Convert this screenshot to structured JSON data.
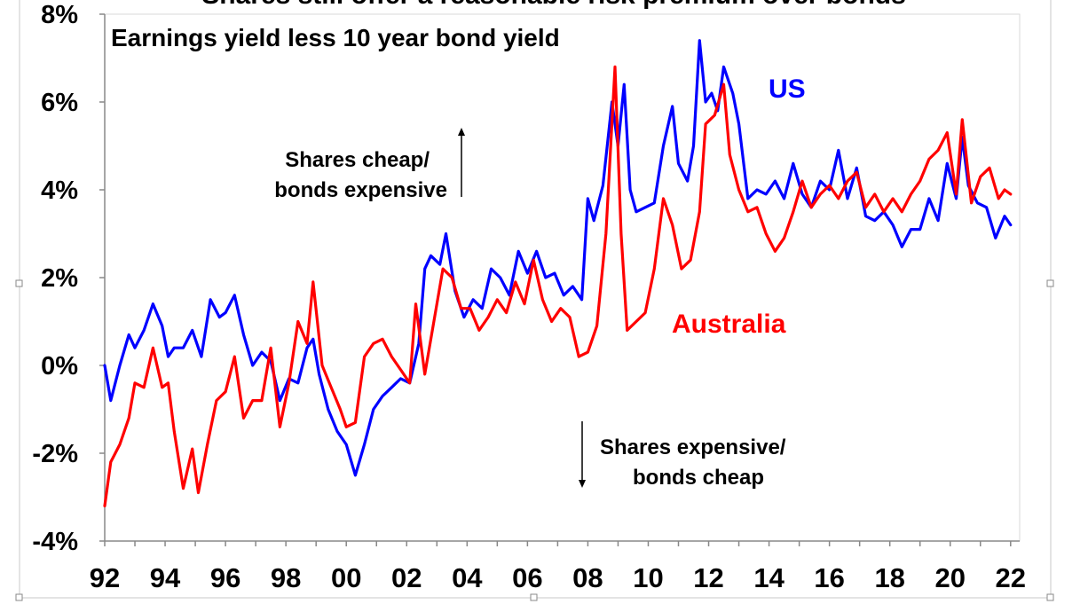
{
  "chart_data": {
    "type": "line",
    "title": "Shares still offer a reasonable risk premium over bonds",
    "subtitle": "Earnings yield less 10 year bond yield",
    "ylim": [
      -4,
      8
    ],
    "xlim": [
      1992,
      2022.3
    ],
    "y_ticks": [
      "8%",
      "6%",
      "4%",
      "2%",
      "0%",
      "-2%",
      "-4%"
    ],
    "y_tick_values": [
      8,
      6,
      4,
      2,
      0,
      -2,
      -4
    ],
    "x_ticks": [
      "92",
      "94",
      "96",
      "98",
      "00",
      "02",
      "04",
      "06",
      "08",
      "10",
      "12",
      "14",
      "16",
      "18",
      "20",
      "22"
    ],
    "x_tick_values": [
      1992,
      1994,
      1996,
      1998,
      2000,
      2002,
      2004,
      2006,
      2008,
      2010,
      2012,
      2014,
      2016,
      2018,
      2020,
      2022
    ],
    "grid": false,
    "series": [
      {
        "name": "US",
        "color": "#0000ff",
        "x": [
          1992.0,
          1992.2,
          1992.5,
          1992.8,
          1993.0,
          1993.3,
          1993.6,
          1993.9,
          1994.1,
          1994.3,
          1994.6,
          1994.9,
          1995.2,
          1995.5,
          1995.8,
          1996.0,
          1996.3,
          1996.6,
          1996.9,
          1997.2,
          1997.5,
          1997.8,
          1998.1,
          1998.4,
          1998.7,
          1998.9,
          1999.1,
          1999.4,
          1999.7,
          2000.0,
          2000.3,
          2000.6,
          2000.9,
          2001.2,
          2001.5,
          2001.8,
          2002.1,
          2002.4,
          2002.6,
          2002.8,
          2003.1,
          2003.3,
          2003.6,
          2003.9,
          2004.2,
          2004.5,
          2004.8,
          2005.1,
          2005.4,
          2005.7,
          2006.0,
          2006.3,
          2006.6,
          2006.9,
          2007.2,
          2007.5,
          2007.8,
          2008.0,
          2008.2,
          2008.5,
          2008.8,
          2009.0,
          2009.2,
          2009.4,
          2009.6,
          2009.9,
          2010.2,
          2010.5,
          2010.8,
          2011.0,
          2011.3,
          2011.5,
          2011.7,
          2011.9,
          2012.1,
          2012.3,
          2012.5,
          2012.8,
          2013.0,
          2013.3,
          2013.6,
          2013.9,
          2014.2,
          2014.5,
          2014.8,
          2015.1,
          2015.4,
          2015.7,
          2016.0,
          2016.3,
          2016.6,
          2016.9,
          2017.2,
          2017.5,
          2017.8,
          2018.1,
          2018.4,
          2018.7,
          2019.0,
          2019.3,
          2019.6,
          2019.9,
          2020.2,
          2020.4,
          2020.6,
          2020.9,
          2021.2,
          2021.5,
          2021.8,
          2022.0
        ],
        "values": [
          0.0,
          -0.8,
          0.0,
          0.7,
          0.4,
          0.8,
          1.4,
          0.9,
          0.2,
          0.4,
          0.4,
          0.8,
          0.2,
          1.5,
          1.1,
          1.2,
          1.6,
          0.7,
          0.0,
          0.3,
          0.1,
          -0.8,
          -0.3,
          -0.4,
          0.4,
          0.6,
          -0.2,
          -1.0,
          -1.5,
          -1.8,
          -2.5,
          -1.8,
          -1.0,
          -0.7,
          -0.5,
          -0.3,
          -0.4,
          0.5,
          2.2,
          2.5,
          2.3,
          3.0,
          1.7,
          1.1,
          1.5,
          1.3,
          2.2,
          2.0,
          1.6,
          2.6,
          2.1,
          2.6,
          2.0,
          2.1,
          1.6,
          1.8,
          1.5,
          3.8,
          3.3,
          4.1,
          6.0,
          5.0,
          6.4,
          4.0,
          3.5,
          3.6,
          3.7,
          5.0,
          5.9,
          4.6,
          4.2,
          5.0,
          7.4,
          6.0,
          6.2,
          5.8,
          6.8,
          6.2,
          5.5,
          3.8,
          4.0,
          3.9,
          4.2,
          3.8,
          4.6,
          3.9,
          3.6,
          4.2,
          4.0,
          4.9,
          3.8,
          4.5,
          3.4,
          3.3,
          3.5,
          3.2,
          2.7,
          3.1,
          3.1,
          3.8,
          3.3,
          4.6,
          3.8,
          5.2,
          4.1,
          3.7,
          3.6,
          2.9,
          3.4,
          3.2
        ]
      },
      {
        "name": "Australia",
        "color": "#ff0000",
        "x": [
          1992.0,
          1992.2,
          1992.5,
          1992.8,
          1993.0,
          1993.3,
          1993.6,
          1993.9,
          1994.1,
          1994.3,
          1994.6,
          1994.9,
          1995.1,
          1995.4,
          1995.7,
          1996.0,
          1996.3,
          1996.6,
          1996.9,
          1997.2,
          1997.5,
          1997.8,
          1998.1,
          1998.4,
          1998.7,
          1998.9,
          1999.2,
          1999.5,
          1999.8,
          2000.0,
          2000.3,
          2000.6,
          2000.9,
          2001.2,
          2001.5,
          2001.8,
          2002.1,
          2002.3,
          2002.6,
          2002.9,
          2003.2,
          2003.5,
          2003.8,
          2004.1,
          2004.4,
          2004.7,
          2005.0,
          2005.3,
          2005.6,
          2005.9,
          2006.2,
          2006.5,
          2006.8,
          2007.1,
          2007.4,
          2007.7,
          2008.0,
          2008.3,
          2008.6,
          2008.9,
          2009.1,
          2009.3,
          2009.6,
          2009.9,
          2010.2,
          2010.5,
          2010.8,
          2011.1,
          2011.4,
          2011.7,
          2011.9,
          2012.2,
          2012.5,
          2012.7,
          2013.0,
          2013.3,
          2013.6,
          2013.9,
          2014.2,
          2014.5,
          2014.8,
          2015.1,
          2015.4,
          2015.7,
          2016.0,
          2016.3,
          2016.6,
          2016.9,
          2017.2,
          2017.5,
          2017.8,
          2018.1,
          2018.4,
          2018.7,
          2019.0,
          2019.3,
          2019.6,
          2019.9,
          2020.2,
          2020.4,
          2020.7,
          2021.0,
          2021.3,
          2021.6,
          2021.8,
          2022.0
        ],
        "values": [
          -3.2,
          -2.2,
          -1.8,
          -1.2,
          -0.4,
          -0.5,
          0.4,
          -0.5,
          -0.4,
          -1.5,
          -2.8,
          -1.9,
          -2.9,
          -1.8,
          -0.8,
          -0.6,
          0.2,
          -1.2,
          -0.8,
          -0.8,
          0.4,
          -1.4,
          -0.4,
          1.0,
          0.5,
          1.9,
          0.0,
          -0.5,
          -1.0,
          -1.4,
          -1.3,
          0.2,
          0.5,
          0.6,
          0.2,
          -0.1,
          -0.4,
          1.4,
          -0.2,
          1.0,
          2.2,
          2.0,
          1.3,
          1.3,
          0.8,
          1.1,
          1.5,
          1.2,
          1.9,
          1.4,
          2.4,
          1.5,
          1.0,
          1.3,
          1.1,
          0.2,
          0.3,
          0.9,
          3.0,
          6.8,
          3.0,
          0.8,
          1.0,
          1.2,
          2.2,
          3.8,
          3.2,
          2.2,
          2.4,
          3.5,
          5.5,
          5.7,
          6.4,
          4.8,
          4.0,
          3.5,
          3.6,
          3.0,
          2.6,
          2.9,
          3.5,
          4.2,
          3.6,
          3.9,
          4.1,
          3.8,
          4.2,
          4.4,
          3.6,
          3.9,
          3.5,
          3.8,
          3.5,
          3.9,
          4.2,
          4.7,
          4.9,
          5.3,
          3.9,
          5.6,
          3.7,
          4.3,
          4.5,
          3.8,
          4.0,
          3.9
        ]
      }
    ],
    "annotations": {
      "us_label": "US",
      "au_label": "Australia",
      "cheap_line1": "Shares cheap/",
      "cheap_line2": "bonds expensive",
      "exp_line1": "Shares expensive/",
      "exp_line2": "bonds cheap"
    }
  }
}
